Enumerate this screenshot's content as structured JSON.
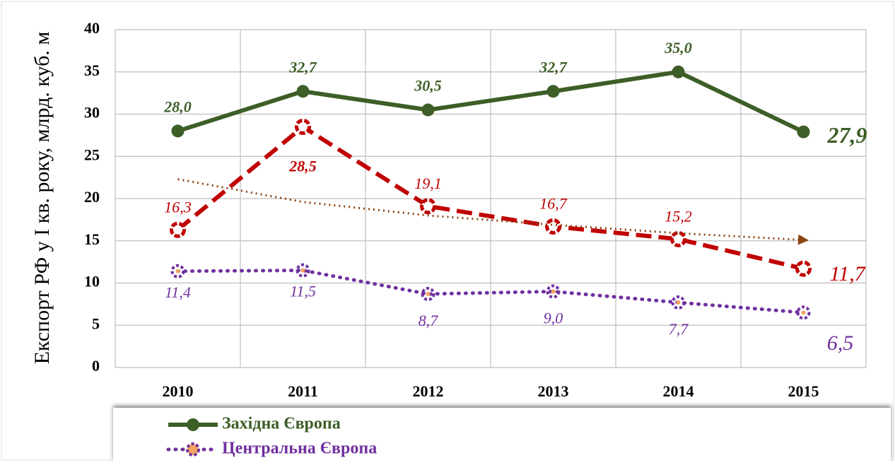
{
  "chart_data": {
    "type": "line",
    "y_label": "Експорт РФ у І кв. року, млрд. куб. м",
    "categories": [
      "2010",
      "2011",
      "2012",
      "2013",
      "2014",
      "2015"
    ],
    "series": [
      {
        "name": "Західна Європа",
        "color": "#3d5e26",
        "style": "solid",
        "values": [
          28.0,
          32.7,
          30.5,
          32.7,
          35.0,
          27.9
        ],
        "value_labels": [
          "28,0",
          "32,7",
          "30,5",
          "32,7",
          "35,0",
          "27,9"
        ]
      },
      {
        "color": "#c00000",
        "style": "dashed",
        "values": [
          16.3,
          28.5,
          19.1,
          16.7,
          15.2,
          11.7
        ],
        "value_labels": [
          "16,3",
          "28,5",
          "19,1",
          "16,7",
          "15,2",
          "11,7"
        ]
      },
      {
        "color": "#8b4513",
        "style": "trend",
        "values": [
          22.3,
          19.6,
          18.0,
          16.9,
          15.9,
          15.1
        ]
      },
      {
        "name": "Центральна Європа",
        "color": "#7030a0",
        "style": "dotted",
        "values": [
          11.4,
          11.5,
          8.7,
          9.0,
          7.7,
          6.5
        ],
        "value_labels": [
          "11,4",
          "11,5",
          "8,7",
          "9,0",
          "7,7",
          "6,5"
        ]
      }
    ],
    "ylim": [
      0,
      40
    ],
    "yticks": [
      0,
      5,
      10,
      15,
      20,
      25,
      30,
      35,
      40
    ],
    "grid": true
  }
}
